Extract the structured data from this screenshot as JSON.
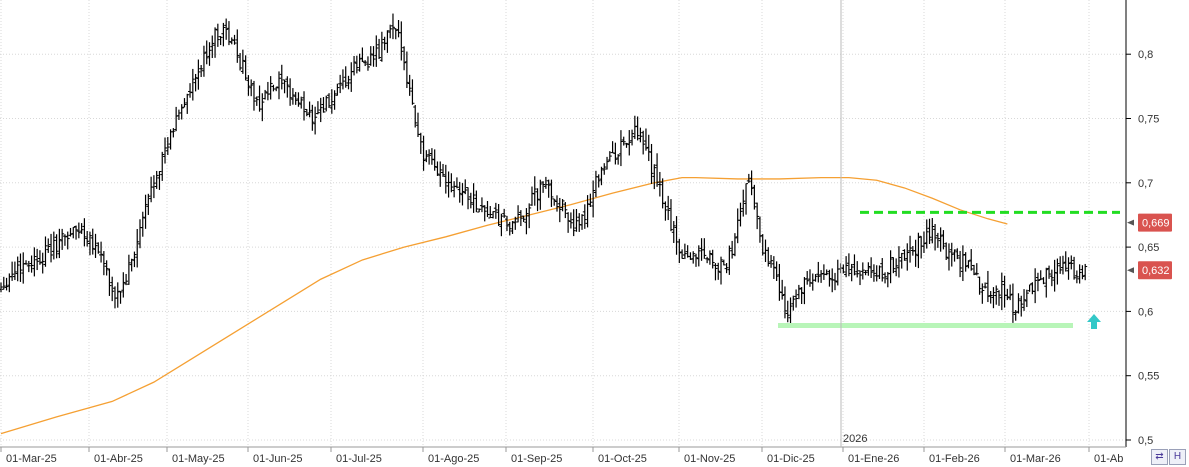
{
  "chart_data": {
    "type": "ohlc",
    "x_labels": [
      "01-Mar-25",
      "01-Abr-25",
      "01-May-25",
      "01-Jun-25",
      "01-Jul-25",
      "01-Ago-25",
      "01-Sep-25",
      "01-Oct-25",
      "01-Nov-25",
      "01-Dic-25",
      "01-Ene-26",
      "01-Feb-26",
      "01-Mar-26",
      "01-Ab"
    ],
    "year_marker": "2026",
    "y_ticks": [
      "0,8",
      "0,75",
      "0,7",
      "0,65",
      "0,6",
      "0,55",
      "0,5"
    ],
    "y_tick_values": [
      0.8,
      0.75,
      0.7,
      0.65,
      0.6,
      0.55,
      0.5
    ],
    "ylim": [
      0.5,
      0.85
    ],
    "grid": true,
    "price_path": [
      [
        0,
        0.62
      ],
      [
        6,
        0.635
      ],
      [
        12,
        0.64
      ],
      [
        18,
        0.648
      ],
      [
        24,
        0.66
      ],
      [
        28,
        0.664
      ],
      [
        32,
        0.658
      ],
      [
        37,
        0.64
      ],
      [
        40,
        0.61
      ],
      [
        44,
        0.62
      ],
      [
        48,
        0.645
      ],
      [
        52,
        0.68
      ],
      [
        56,
        0.71
      ],
      [
        60,
        0.728
      ],
      [
        64,
        0.757
      ],
      [
        68,
        0.77
      ],
      [
        72,
        0.79
      ],
      [
        76,
        0.812
      ],
      [
        80,
        0.82
      ],
      [
        84,
        0.805
      ],
      [
        88,
        0.785
      ],
      [
        92,
        0.76
      ],
      [
        96,
        0.77
      ],
      [
        100,
        0.776
      ],
      [
        104,
        0.77
      ],
      [
        108,
        0.76
      ],
      [
        112,
        0.752
      ],
      [
        116,
        0.76
      ],
      [
        120,
        0.765
      ],
      [
        124,
        0.778
      ],
      [
        128,
        0.792
      ],
      [
        132,
        0.796
      ],
      [
        136,
        0.8
      ],
      [
        140,
        0.82
      ],
      [
        144,
        0.808
      ],
      [
        148,
        0.76
      ],
      [
        152,
        0.72
      ],
      [
        156,
        0.712
      ],
      [
        160,
        0.705
      ],
      [
        164,
        0.698
      ],
      [
        168,
        0.69
      ],
      [
        172,
        0.682
      ],
      [
        176,
        0.676
      ],
      [
        180,
        0.67
      ],
      [
        184,
        0.665
      ],
      [
        188,
        0.676
      ],
      [
        192,
        0.69
      ],
      [
        196,
        0.698
      ],
      [
        200,
        0.686
      ],
      [
        204,
        0.674
      ],
      [
        208,
        0.662
      ],
      [
        212,
        0.69
      ],
      [
        216,
        0.713
      ],
      [
        220,
        0.72
      ],
      [
        224,
        0.73
      ],
      [
        228,
        0.738
      ],
      [
        232,
        0.725
      ],
      [
        236,
        0.7
      ],
      [
        240,
        0.675
      ],
      [
        244,
        0.648
      ],
      [
        248,
        0.642
      ],
      [
        252,
        0.648
      ],
      [
        256,
        0.64
      ],
      [
        260,
        0.632
      ],
      [
        264,
        0.655
      ],
      [
        268,
        0.7
      ],
      [
        270,
        0.695
      ],
      [
        274,
        0.65
      ],
      [
        278,
        0.635
      ],
      [
        282,
        0.6
      ],
      [
        286,
        0.612
      ],
      [
        290,
        0.622
      ],
      [
        294,
        0.625
      ],
      [
        298,
        0.628
      ],
      [
        302,
        0.63
      ],
      [
        306,
        0.632
      ],
      [
        310,
        0.63
      ],
      [
        314,
        0.628
      ],
      [
        318,
        0.63
      ],
      [
        322,
        0.64
      ],
      [
        326,
        0.643
      ],
      [
        330,
        0.652
      ],
      [
        334,
        0.66
      ],
      [
        336,
        0.662
      ],
      [
        340,
        0.648
      ],
      [
        344,
        0.64
      ],
      [
        348,
        0.638
      ],
      [
        352,
        0.62
      ],
      [
        356,
        0.615
      ],
      [
        360,
        0.618
      ],
      [
        364,
        0.605
      ],
      [
        366,
        0.605
      ],
      [
        370,
        0.615
      ],
      [
        374,
        0.626
      ],
      [
        378,
        0.632
      ],
      [
        382,
        0.634
      ],
      [
        386,
        0.632
      ],
      [
        390,
        0.633
      ]
    ],
    "ma_series": [
      [
        0,
        0.505
      ],
      [
        20,
        0.518
      ],
      [
        40,
        0.53
      ],
      [
        55,
        0.545
      ],
      [
        70,
        0.565
      ],
      [
        85,
        0.585
      ],
      [
        100,
        0.605
      ],
      [
        115,
        0.625
      ],
      [
        130,
        0.64
      ],
      [
        145,
        0.65
      ],
      [
        160,
        0.658
      ],
      [
        175,
        0.667
      ],
      [
        190,
        0.675
      ],
      [
        205,
        0.683
      ],
      [
        220,
        0.692
      ],
      [
        235,
        0.7
      ],
      [
        245,
        0.704
      ],
      [
        250,
        0.704
      ],
      [
        265,
        0.703
      ],
      [
        280,
        0.703
      ],
      [
        295,
        0.704
      ],
      [
        305,
        0.704
      ],
      [
        315,
        0.702
      ],
      [
        325,
        0.696
      ],
      [
        335,
        0.688
      ],
      [
        345,
        0.679
      ],
      [
        355,
        0.672
      ],
      [
        362,
        0.668
      ]
    ],
    "resistance_level": 0.677,
    "support_level": 0.589,
    "price_tags": [
      {
        "value": 0.669,
        "label": "0,669"
      },
      {
        "value": 0.632,
        "label": "0,632"
      }
    ],
    "colors": {
      "candles": "#000000",
      "moving_average": "#f5a033",
      "resistance": "#22dd22",
      "support": "#b8f5b8",
      "arrow": "#33c8c8",
      "tag_bg": "#d9534f",
      "grid": "#d8d8d8"
    }
  },
  "corner_buttons": [
    "⇄",
    "H"
  ]
}
